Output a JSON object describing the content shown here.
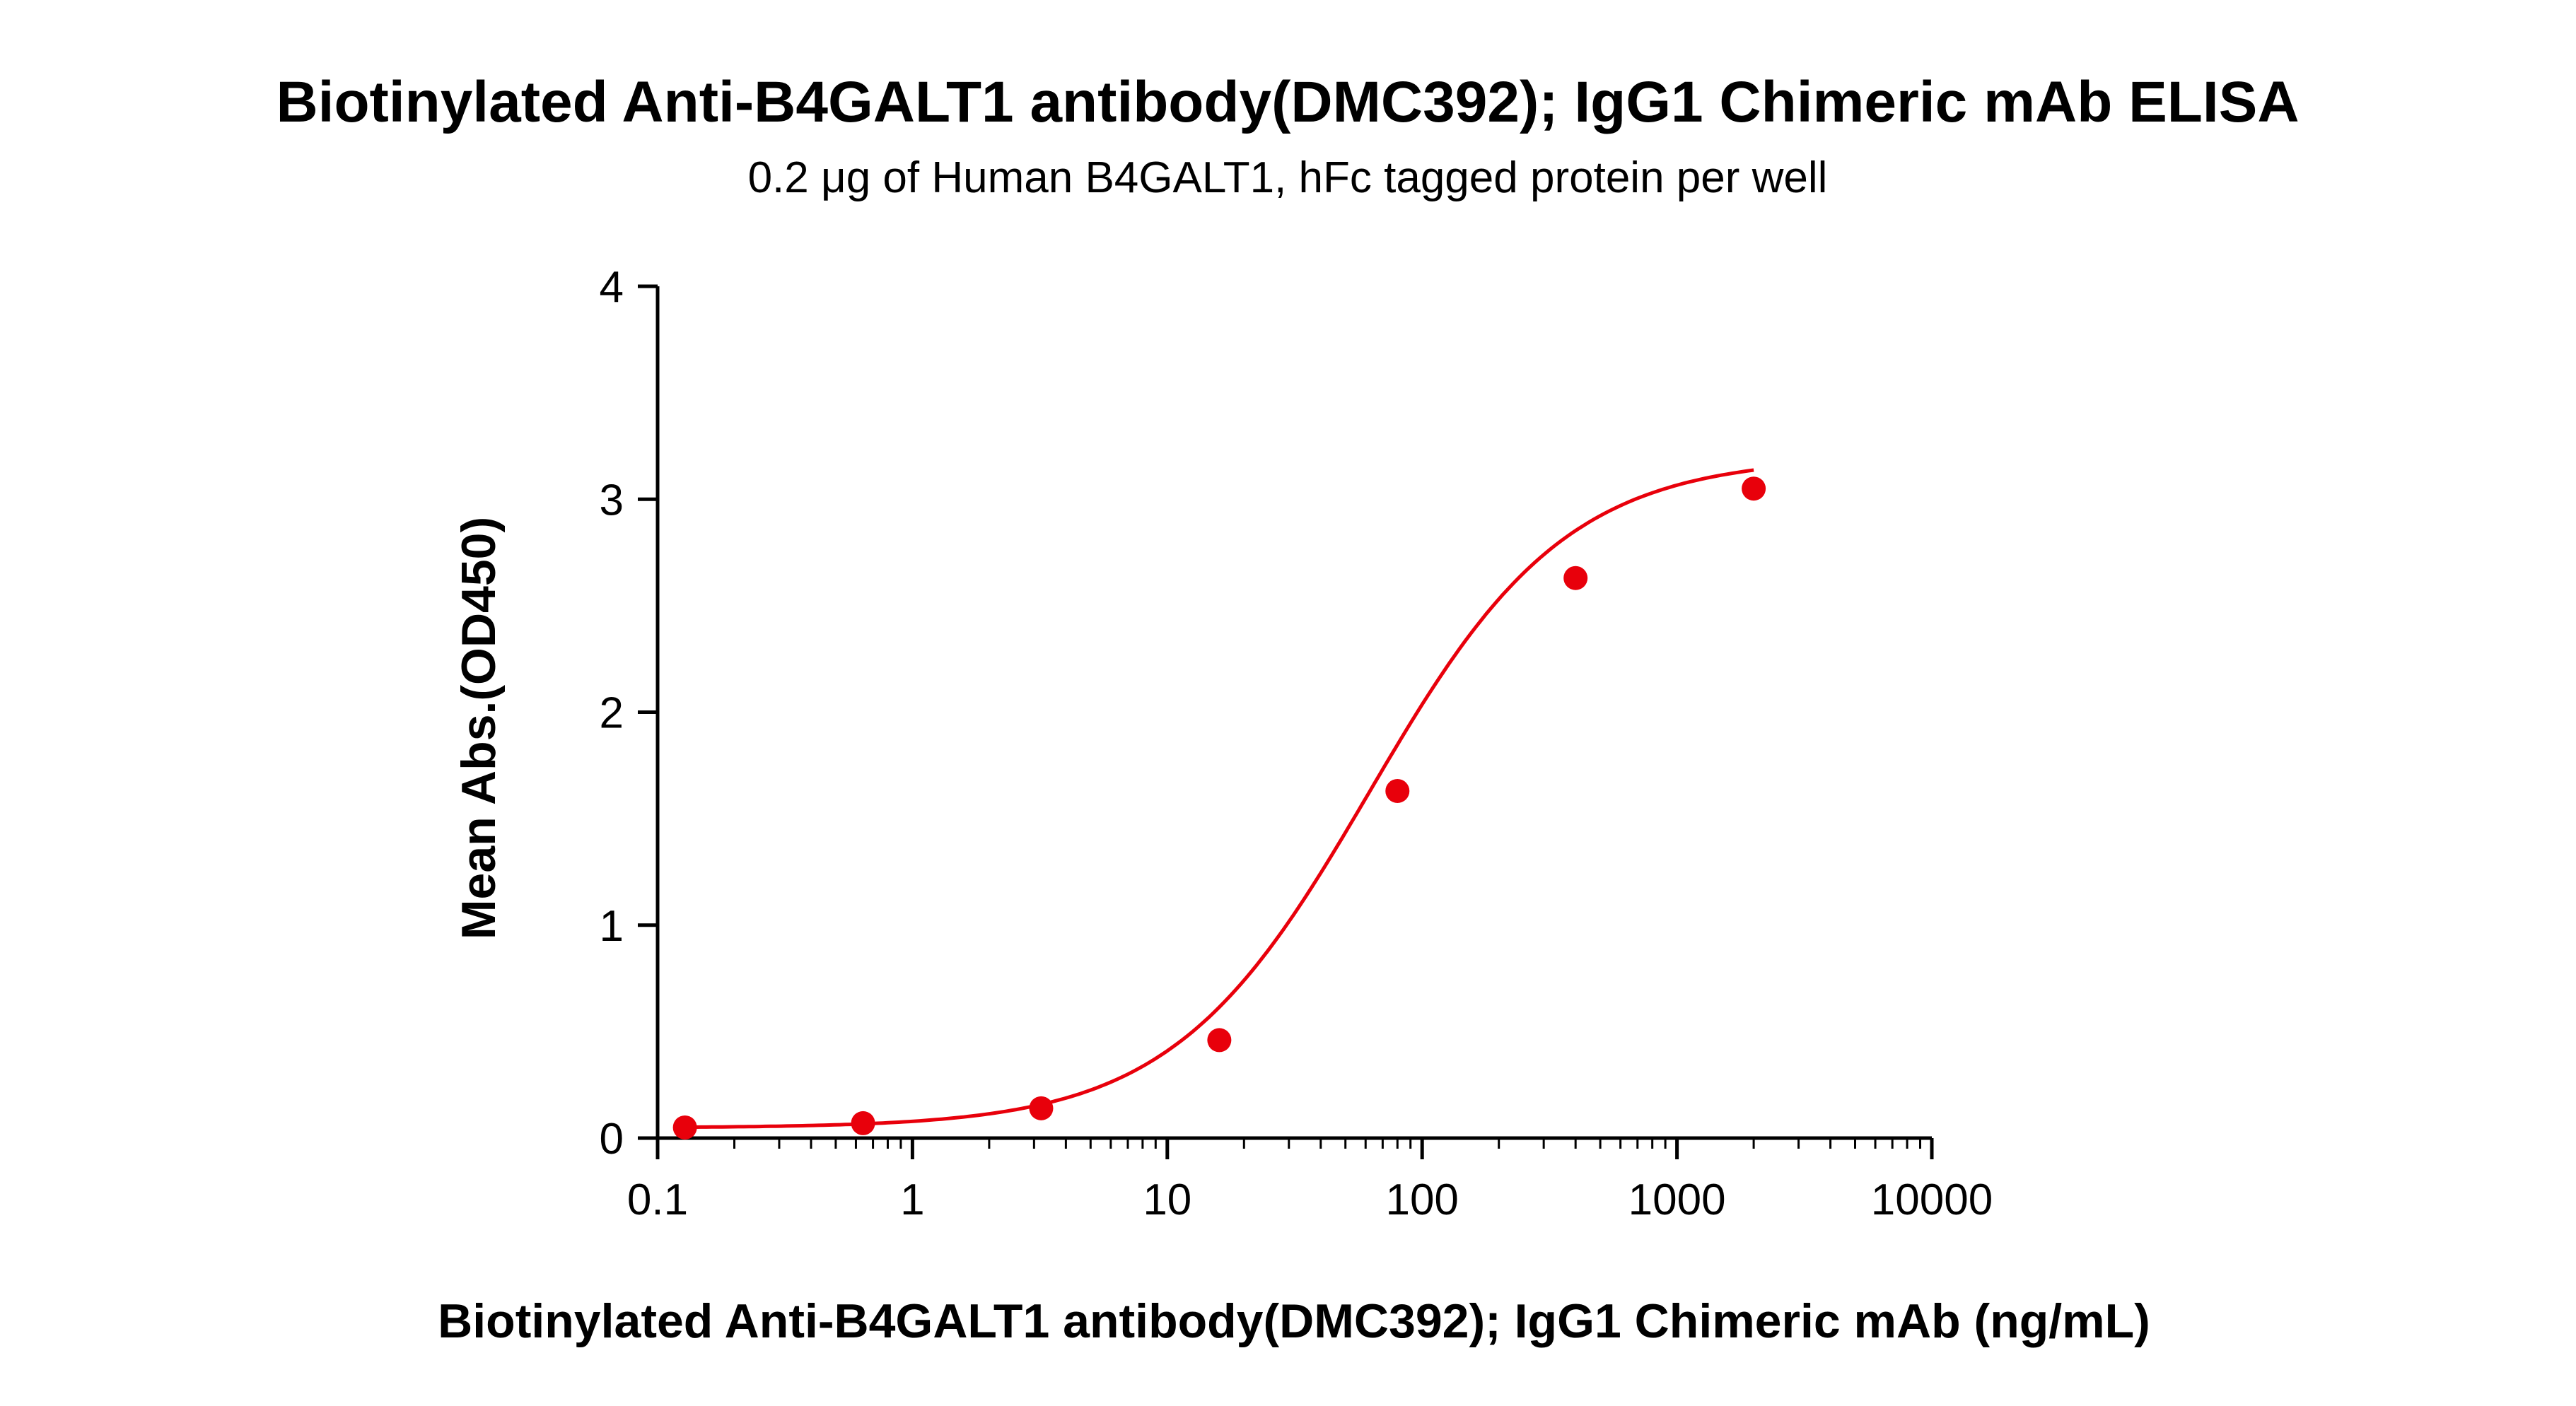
{
  "chart_data": {
    "type": "scatter",
    "title": "Biotinylated Anti-B4GALT1 antibody(DMC392); IgG1 Chimeric mAb ELISA",
    "subtitle": "0.2 μg of Human B4GALT1, hFc tagged protein per well",
    "xlabel": "Biotinylated Anti-B4GALT1 antibody(DMC392); IgG1 Chimeric mAb (ng/mL)",
    "ylabel": "Mean Abs.(OD450)",
    "xscale": "log",
    "xlim": [
      0.1,
      10000
    ],
    "ylim": [
      0,
      4
    ],
    "x_ticks": [
      0.1,
      1,
      10,
      100,
      1000,
      10000
    ],
    "x_tick_labels": [
      "0.1",
      "1",
      "10",
      "100",
      "1000",
      "10000"
    ],
    "y_ticks": [
      0,
      1,
      2,
      3,
      4
    ],
    "y_tick_labels": [
      "0",
      "1",
      "2",
      "3",
      "4"
    ],
    "grid": false,
    "legend": "none",
    "series": [
      {
        "x": [
          0.128,
          0.64,
          3.2,
          16,
          80,
          400,
          2000
        ],
        "y": [
          0.05,
          0.07,
          0.14,
          0.46,
          1.63,
          2.63,
          3.05
        ],
        "color": "#e8000b",
        "fit": "4PL"
      }
    ]
  }
}
